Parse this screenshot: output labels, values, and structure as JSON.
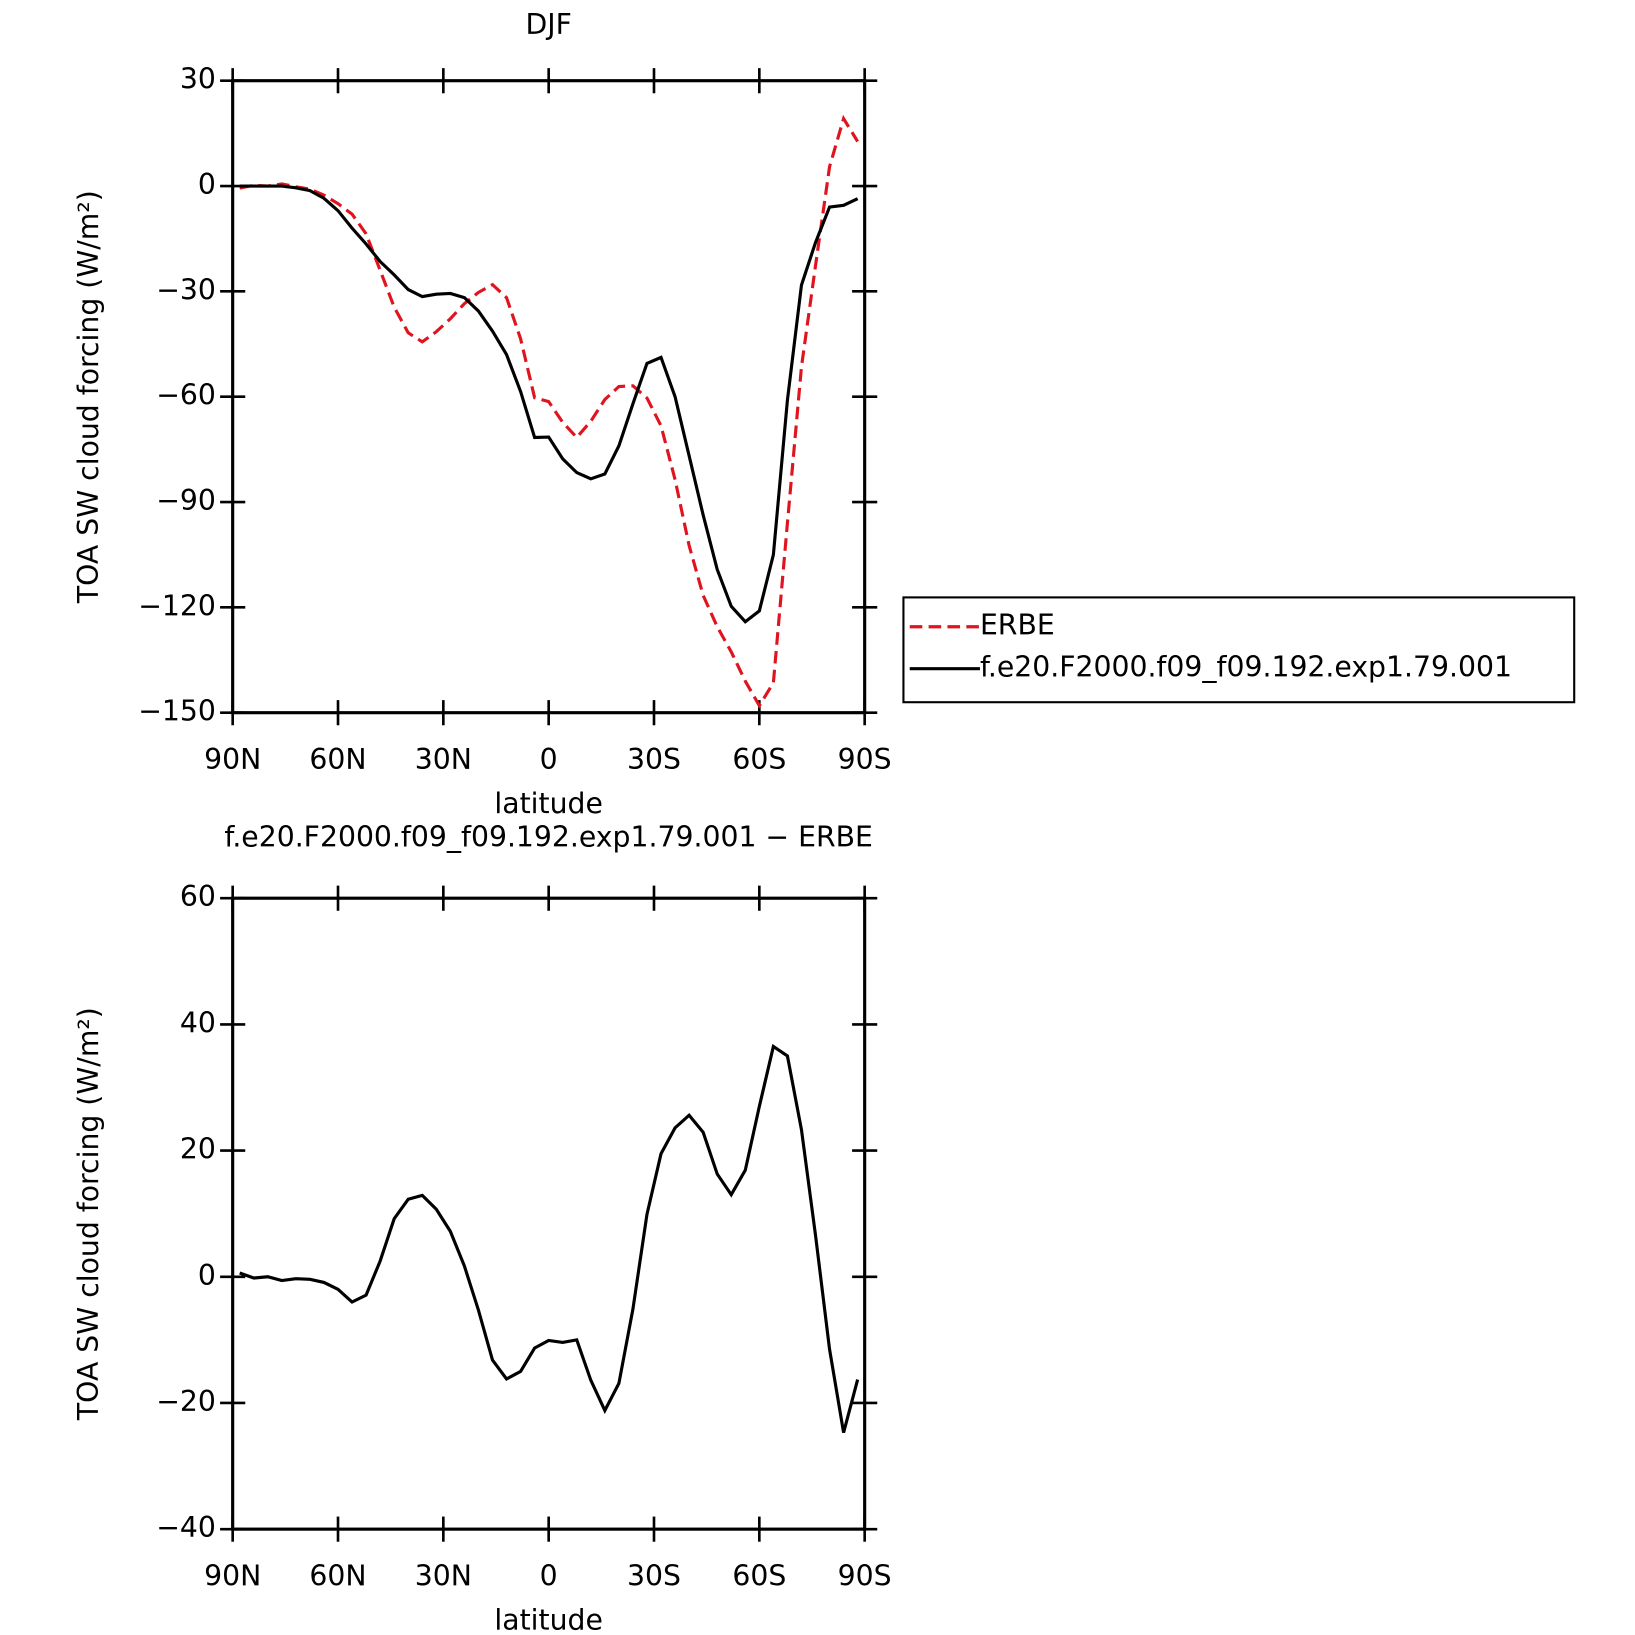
{
  "chart_data": [
    {
      "type": "line",
      "title": "DJF",
      "x_label": "latitude",
      "y_label": "TOA SW cloud forcing (W/m²)",
      "xlim": [
        90,
        -90
      ],
      "xticks": [
        {
          "value": 90,
          "label": "90N"
        },
        {
          "value": 60,
          "label": "60N"
        },
        {
          "value": 30,
          "label": "30N"
        },
        0,
        {
          "value": -30,
          "label": "30S"
        },
        {
          "value": -60,
          "label": "60S"
        },
        {
          "value": -90,
          "label": "90S"
        }
      ],
      "ylim": [
        -150,
        30
      ],
      "yticks": [
        30,
        0,
        {
          "value": -30,
          "label": "−30"
        },
        {
          "value": -60,
          "label": "−60"
        },
        {
          "value": -90,
          "label": "−90"
        },
        {
          "value": -120,
          "label": "−120"
        },
        {
          "value": -150,
          "label": "−150"
        }
      ],
      "legend": "right",
      "grid": false,
      "x": [
        88,
        84,
        80,
        76,
        72,
        68,
        64,
        60,
        56,
        52,
        48,
        44,
        40,
        36,
        32,
        28,
        24,
        20,
        16,
        12,
        8,
        4,
        0,
        -4,
        -8,
        -12,
        -16,
        -20,
        -24,
        -28,
        -32,
        -36,
        -40,
        -44,
        -48,
        -52,
        -56,
        -60,
        -64,
        -68,
        -72,
        -76,
        -80,
        -84,
        -88
      ],
      "series": [
        {
          "name": "ERBE",
          "color": "#e0141e",
          "linestyle": "dashed",
          "values": [
            -0.6,
            0.2,
            0,
            0.6,
            -0.2,
            -0.9,
            -2.6,
            -5,
            -8,
            -13.6,
            -24,
            -34.5,
            -41.8,
            -44.4,
            -41.5,
            -37.8,
            -33.5,
            -30.3,
            -28.1,
            -31.8,
            -43.5,
            -60.3,
            -61.4,
            -67.3,
            -71.6,
            -67,
            -60.8,
            -57.1,
            -56.9,
            -60.4,
            -68.3,
            -83.6,
            -102.4,
            -116.6,
            -125.5,
            -132.7,
            -141,
            -148,
            -141.5,
            -96,
            -51.5,
            -22.7,
            5.5,
            19.2,
            12.7
          ]
        },
        {
          "name": "f.e20.F2000.f09_f09.192.exp1.79.001",
          "color": "#000000",
          "linestyle": "solid",
          "values": [
            0,
            0,
            0,
            0,
            -0.5,
            -1.3,
            -3.5,
            -7,
            -12,
            -16.5,
            -21.5,
            -25.3,
            -29.5,
            -31.5,
            -30.8,
            -30.6,
            -31.8,
            -35.6,
            -41.3,
            -48,
            -58.5,
            -71.6,
            -71.5,
            -77.7,
            -81.6,
            -83.4,
            -82,
            -74,
            -62,
            -50.5,
            -48.8,
            -60,
            -76.8,
            -93.7,
            -109.2,
            -119.7,
            -124.1,
            -121,
            -105,
            -61,
            -28.2,
            -16.1,
            -6,
            -5.5,
            -3.6
          ]
        }
      ]
    },
    {
      "type": "line",
      "title": "f.e20.F2000.f09_f09.192.exp1.79.001 − ERBE",
      "x_label": "latitude",
      "y_label": "TOA SW cloud forcing (W/m²)",
      "xlim": [
        90,
        -90
      ],
      "xticks": [
        {
          "value": 90,
          "label": "90N"
        },
        {
          "value": 60,
          "label": "60N"
        },
        {
          "value": 30,
          "label": "30N"
        },
        0,
        {
          "value": -30,
          "label": "30S"
        },
        {
          "value": -60,
          "label": "60S"
        },
        {
          "value": -90,
          "label": "90S"
        }
      ],
      "ylim": [
        -40,
        60
      ],
      "yticks": [
        60,
        40,
        20,
        0,
        {
          "value": -20,
          "label": "−20"
        },
        {
          "value": -40,
          "label": "−40"
        }
      ],
      "grid": false,
      "x": [
        88,
        84,
        80,
        76,
        72,
        68,
        64,
        60,
        56,
        52,
        48,
        44,
        40,
        36,
        32,
        28,
        24,
        20,
        16,
        12,
        8,
        4,
        0,
        -4,
        -8,
        -12,
        -16,
        -20,
        -24,
        -28,
        -32,
        -36,
        -40,
        -44,
        -48,
        -52,
        -56,
        -60,
        -64,
        -68,
        -72,
        -76,
        -80,
        -84,
        -88
      ],
      "series": [
        {
          "color": "#000000",
          "linestyle": "solid",
          "values": [
            0.6,
            -0.2,
            0,
            -0.6,
            -0.3,
            -0.4,
            -0.9,
            -2,
            -4,
            -2.9,
            2.5,
            9.2,
            12.3,
            12.9,
            10.7,
            7.2,
            1.7,
            -5.3,
            -13.2,
            -16.2,
            -15,
            -11.3,
            -10.1,
            -10.4,
            -10,
            -16.4,
            -21.2,
            -16.9,
            -5.1,
            9.9,
            19.5,
            23.6,
            25.6,
            22.9,
            16.3,
            13,
            16.9,
            27,
            36.5,
            35,
            23.3,
            6.6,
            -11.5,
            -24.7,
            -16.3
          ]
        }
      ]
    }
  ]
}
